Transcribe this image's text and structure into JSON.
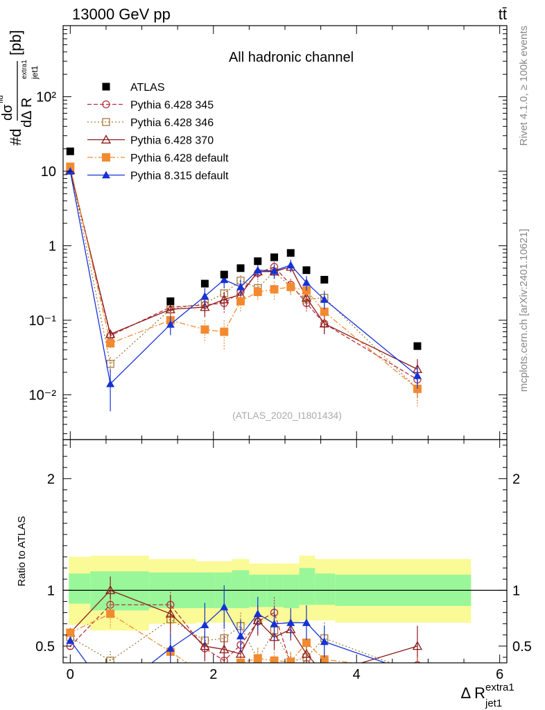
{
  "header": {
    "energy_label": "13000 GeV pp",
    "process_label": "tt̄"
  },
  "side": {
    "rivet_label": "Rivet 4.1.0, ≥ 100k events",
    "mcplots_label": "mcplots.cern.ch [arXiv:2401.10621]"
  },
  "labels": {
    "channel": "All hadronic channel",
    "analysis": "(ATLAS_2020_I1801434)",
    "ratio_ylabel": "Ratio to ATLAS",
    "xlabel_main": "Δ R",
    "xlabel_sup": "extra1",
    "xlabel_sub": "jet1",
    "ylabel_main": "#d",
    "ylabel_top": "dσ",
    "ylabel_top_sup": "fid",
    "ylabel_bottom": "dΔ R",
    "ylabel_bottom_sub": "jet1",
    "ylabel_bottom_sup": "extra1",
    "ylabel_unit": "[pb]"
  },
  "colors": {
    "atlas": "#000000",
    "p345": "#b5313c",
    "p346": "#a3793a",
    "p370": "#8b1a1a",
    "p6def": "#f28a30",
    "p8def": "#1632d6",
    "band_inner": "#99f799",
    "band_outer": "#fafa96"
  },
  "chart_data": {
    "type": "scatter",
    "xlim": [
      -0.1,
      6.1
    ],
    "ylim_main": [
      0.0025,
      900
    ],
    "ylim_ratio": [
      0.35,
      2.35
    ],
    "x_ticks": [
      0,
      2,
      4,
      6
    ],
    "x_tick_labels": [
      "0",
      "2",
      "4",
      "6"
    ],
    "y_ticks_main": [
      0.01,
      0.1,
      1,
      10,
      100
    ],
    "y_tick_labels_main": [
      "10⁻²",
      "10⁻¹",
      "1",
      "10",
      "10²"
    ],
    "y_ticks_ratio": [
      0.5,
      1,
      2
    ],
    "y_tick_labels_ratio": [
      "0.5",
      "1",
      "2"
    ],
    "x": [
      0.0,
      0.56,
      1.4,
      1.88,
      2.15,
      2.38,
      2.62,
      2.85,
      3.08,
      3.3,
      3.55,
      4.85
    ],
    "bins": [
      [
        -0.02,
        0.28
      ],
      [
        0.28,
        1.1
      ],
      [
        1.1,
        1.76
      ],
      [
        1.76,
        2.02
      ],
      [
        2.02,
        2.26
      ],
      [
        2.26,
        2.5
      ],
      [
        2.5,
        2.74
      ],
      [
        2.74,
        2.98
      ],
      [
        2.98,
        3.2
      ],
      [
        3.2,
        3.42
      ],
      [
        3.42,
        3.7
      ],
      [
        3.7,
        5.6
      ]
    ],
    "series": [
      {
        "name": "ATLAS",
        "key": "atlas",
        "marker": "square-filled",
        "line": "none",
        "values": [
          18.5,
          null,
          0.18,
          0.31,
          0.41,
          0.5,
          0.62,
          0.7,
          0.8,
          0.47,
          0.35,
          0.045
        ],
        "band_inner": [
          [
            0.88,
            1.15
          ],
          [
            0.82,
            1.17
          ],
          [
            0.84,
            1.16
          ],
          [
            0.84,
            1.16
          ],
          [
            0.84,
            1.16
          ],
          [
            0.84,
            1.18
          ],
          [
            0.85,
            1.14
          ],
          [
            0.85,
            1.14
          ],
          [
            0.84,
            1.14
          ],
          [
            0.87,
            1.2
          ],
          [
            0.87,
            1.15
          ],
          [
            0.86,
            1.14
          ]
        ],
        "band_outer": [
          [
            0.69,
            1.3
          ],
          [
            0.64,
            1.31
          ],
          [
            0.7,
            1.28
          ],
          [
            0.71,
            1.26
          ],
          [
            0.71,
            1.26
          ],
          [
            0.69,
            1.28
          ],
          [
            0.72,
            1.24
          ],
          [
            0.72,
            1.24
          ],
          [
            0.71,
            1.24
          ],
          [
            0.73,
            1.31
          ],
          [
            0.73,
            1.28
          ],
          [
            0.71,
            1.28
          ]
        ]
      },
      {
        "name": "Pythia 6.428 345",
        "key": "p345",
        "marker": "circle-open",
        "line": "dashed",
        "values": [
          10.5,
          0.062,
          0.15,
          0.16,
          0.17,
          0.24,
          0.43,
          0.52,
          0.3,
          0.17,
          0.09,
          0.016
        ],
        "errors": [
          0.6,
          0.008,
          0.02,
          0.04,
          0.05,
          0.05,
          0.08,
          0.09,
          0.06,
          0.04,
          0.025,
          0.007
        ],
        "ratio": [
          0.5,
          0.87,
          0.87,
          0.48,
          0.37,
          0.51,
          0.72,
          0.8,
          0.34,
          0.34,
          0.23,
          0.33
        ]
      },
      {
        "name": "Pythia 6.428 346",
        "key": "p346",
        "marker": "square-open",
        "line": "dotted",
        "values": [
          11.0,
          0.026,
          0.14,
          0.17,
          0.23,
          0.34,
          0.27,
          0.45,
          0.28,
          0.19,
          0.2,
          0.012
        ],
        "errors": [
          0.6,
          0.006,
          0.03,
          0.04,
          0.05,
          0.06,
          0.07,
          0.09,
          0.06,
          0.05,
          0.05,
          0.005
        ],
        "ratio": [
          0.58,
          0.37,
          0.74,
          0.55,
          0.57,
          0.68,
          0.38,
          0.64,
          0.36,
          0.4,
          0.57,
          0.26
        ]
      },
      {
        "name": "Pythia 6.428 370",
        "key": "p370",
        "marker": "triangle-open",
        "line": "solid",
        "values": [
          10.3,
          0.065,
          0.14,
          0.15,
          0.19,
          0.22,
          0.45,
          0.45,
          0.52,
          0.2,
          0.09,
          0.022
        ],
        "errors": [
          0.6,
          0.008,
          0.03,
          0.04,
          0.05,
          0.05,
          0.08,
          0.09,
          0.08,
          0.05,
          0.025,
          0.008
        ],
        "ratio": [
          0.62,
          1.0,
          0.79,
          0.5,
          0.47,
          0.43,
          0.73,
          0.58,
          0.65,
          0.43,
          0.25,
          0.5
        ]
      },
      {
        "name": "Pythia 6.428 default",
        "key": "p6def",
        "marker": "square-filled",
        "line": "dashdot",
        "values": [
          11.5,
          0.049,
          0.1,
          0.075,
          0.07,
          0.18,
          0.24,
          0.26,
          0.28,
          0.25,
          0.13,
          0.012
        ],
        "errors": [
          0.6,
          0.008,
          0.03,
          0.025,
          0.03,
          0.05,
          0.06,
          0.07,
          0.07,
          0.06,
          0.04,
          0.005
        ],
        "ratio": [
          0.62,
          0.79,
          0.45,
          0.24,
          0.17,
          0.35,
          0.39,
          0.37,
          0.36,
          0.53,
          0.38,
          0.28
        ]
      },
      {
        "name": "Pythia 8.315 default",
        "key": "p8def",
        "marker": "triangle-filled",
        "line": "solid",
        "values": [
          10.0,
          0.014,
          0.088,
          0.21,
          0.35,
          0.28,
          0.47,
          0.46,
          0.55,
          0.32,
          0.19,
          0.018
        ],
        "errors": [
          0.5,
          0.008,
          0.025,
          0.06,
          0.08,
          0.07,
          0.09,
          0.1,
          0.1,
          0.07,
          0.05,
          0.006
        ],
        "ratio": [
          0.55,
          0.06,
          0.48,
          0.69,
          0.85,
          0.59,
          0.79,
          0.7,
          0.71,
          0.71,
          0.54,
          0.25
        ]
      }
    ]
  }
}
